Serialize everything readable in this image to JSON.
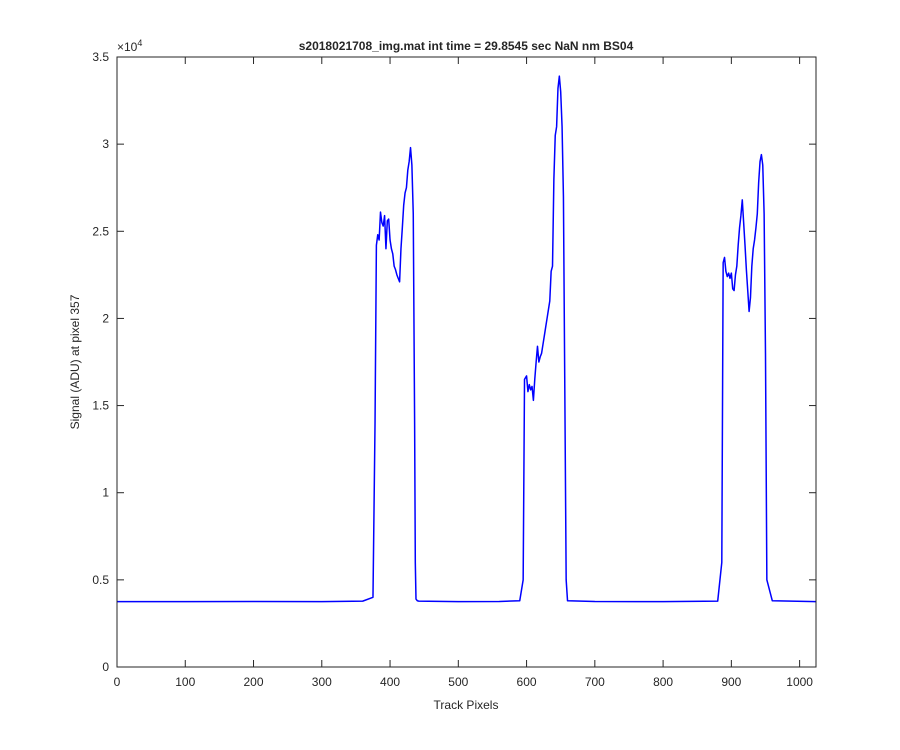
{
  "chart_data": {
    "type": "line",
    "title": "s2018021708_img.mat int time = 29.8545 sec  NaN nm BS04",
    "xlabel": "Track Pixels",
    "ylabel": "Signal (ADU) at pixel 357",
    "y_exponent_label": "×10",
    "y_exponent_power": "4",
    "xlim": [
      0,
      1024
    ],
    "ylim": [
      0,
      35000
    ],
    "xticks": [
      0,
      100,
      200,
      300,
      400,
      500,
      600,
      700,
      800,
      900,
      1000
    ],
    "xtick_labels": [
      "0",
      "100",
      "200",
      "300",
      "400",
      "500",
      "600",
      "700",
      "800",
      "900",
      "1000"
    ],
    "yticks": [
      0,
      5000,
      10000,
      15000,
      20000,
      25000,
      30000,
      35000
    ],
    "ytick_labels": [
      "0",
      "0.5",
      "1",
      "1.5",
      "2",
      "2.5",
      "3",
      "3.5"
    ],
    "grid": false,
    "line_color": "#0000ff",
    "series": [
      {
        "x": [
          0,
          100,
          200,
          300,
          360,
          375,
          378,
          380,
          382,
          384,
          386,
          388,
          390,
          392,
          394,
          396,
          398,
          400,
          402,
          404,
          406,
          408,
          410,
          412,
          414,
          416,
          418,
          420,
          422,
          424,
          426,
          428,
          430,
          432,
          434,
          436,
          437,
          438,
          440,
          442,
          500,
          560,
          590,
          595,
          597,
          600,
          602,
          604,
          606,
          608,
          610,
          612,
          614,
          616,
          618,
          620,
          622,
          624,
          626,
          628,
          630,
          632,
          634,
          636,
          638,
          640,
          642,
          644,
          646,
          648,
          650,
          652,
          654,
          656,
          658,
          660,
          700,
          800,
          880,
          886,
          888,
          890,
          892,
          894,
          896,
          898,
          900,
          902,
          904,
          906,
          908,
          910,
          912,
          914,
          916,
          918,
          920,
          922,
          924,
          926,
          928,
          930,
          932,
          934,
          936,
          938,
          940,
          942,
          944,
          946,
          948,
          950,
          952,
          960,
          1024
        ],
        "y": [
          3750,
          3750,
          3760,
          3750,
          3780,
          4000,
          14000,
          24200,
          24800,
          24500,
          26100,
          25500,
          25300,
          25900,
          24000,
          25600,
          25700,
          24500,
          24000,
          23700,
          23000,
          22800,
          22500,
          22300,
          22100,
          24000,
          25200,
          26500,
          27200,
          27500,
          28500,
          29000,
          29800,
          28800,
          26000,
          14000,
          6000,
          3900,
          3800,
          3780,
          3750,
          3760,
          3800,
          5000,
          16500,
          16700,
          15800,
          16200,
          15900,
          16100,
          15300,
          16500,
          17500,
          18400,
          17500,
          17800,
          18000,
          18500,
          19000,
          19500,
          20000,
          20500,
          21000,
          22700,
          23000,
          28000,
          30500,
          31000,
          33200,
          33900,
          33000,
          31000,
          27000,
          16000,
          5000,
          3800,
          3760,
          3750,
          3780,
          6000,
          23200,
          23500,
          22700,
          22400,
          22600,
          22300,
          22600,
          21700,
          21600,
          22500,
          23000,
          24200,
          25200,
          25900,
          26800,
          25500,
          24200,
          22800,
          21600,
          20400,
          21200,
          23000,
          24000,
          24500,
          25200,
          26000,
          27800,
          29000,
          29400,
          28800,
          26000,
          18000,
          5000,
          3800,
          3750
        ]
      }
    ]
  }
}
